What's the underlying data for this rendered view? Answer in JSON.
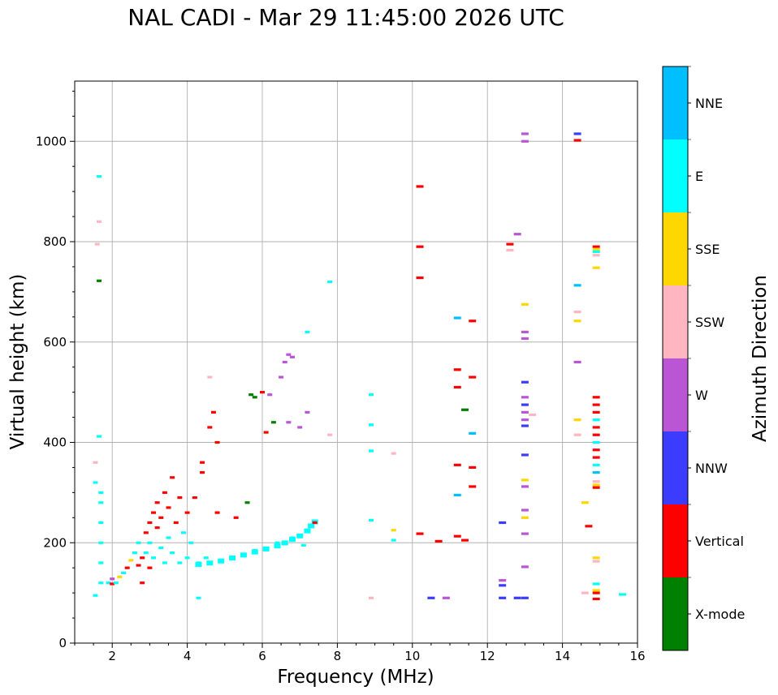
{
  "chart_data": {
    "type": "scatter",
    "title": "NAL CADI - Mar 29 11:45:00 2026 UTC",
    "xlabel": "Frequency (MHz)",
    "ylabel": "Virtual height (km)",
    "xlim": [
      1,
      16
    ],
    "ylim": [
      0,
      1120
    ],
    "xticks": [
      2,
      4,
      6,
      8,
      10,
      12,
      14,
      16
    ],
    "yticks": [
      0,
      200,
      400,
      600,
      800,
      1000
    ],
    "grid": true,
    "colorbar": {
      "label": "Azimuth Direction",
      "categories": [
        {
          "name": "NNE",
          "color": "#00bfff"
        },
        {
          "name": "E",
          "color": "#00ffff"
        },
        {
          "name": "SSE",
          "color": "#ffd700"
        },
        {
          "name": "SSW",
          "color": "#ffb6c1"
        },
        {
          "name": "W",
          "color": "#ba55d3"
        },
        {
          "name": "NNW",
          "color": "#3c3cff"
        },
        {
          "name": "Vertical",
          "color": "#ff0000"
        },
        {
          "name": "X-mode",
          "color": "#008000"
        }
      ]
    },
    "points": [
      {
        "x": 1.55,
        "y": 95,
        "dir": "E"
      },
      {
        "x": 1.55,
        "y": 320,
        "dir": "E"
      },
      {
        "x": 1.55,
        "y": 360,
        "dir": "SSW"
      },
      {
        "x": 1.6,
        "y": 795,
        "dir": "SSW"
      },
      {
        "x": 1.65,
        "y": 930,
        "dir": "E"
      },
      {
        "x": 1.65,
        "y": 722,
        "dir": "X-mode"
      },
      {
        "x": 1.65,
        "y": 412,
        "dir": "E"
      },
      {
        "x": 1.65,
        "y": 840,
        "dir": "SSW"
      },
      {
        "x": 1.7,
        "y": 120,
        "dir": "E"
      },
      {
        "x": 1.7,
        "y": 160,
        "dir": "E"
      },
      {
        "x": 1.7,
        "y": 200,
        "dir": "E"
      },
      {
        "x": 1.7,
        "y": 240,
        "dir": "E"
      },
      {
        "x": 1.7,
        "y": 280,
        "dir": "E"
      },
      {
        "x": 1.7,
        "y": 300,
        "dir": "E"
      },
      {
        "x": 1.9,
        "y": 120,
        "dir": "E"
      },
      {
        "x": 2.0,
        "y": 118,
        "dir": "Vertical"
      },
      {
        "x": 2.0,
        "y": 128,
        "dir": "W"
      },
      {
        "x": 2.1,
        "y": 120,
        "dir": "E"
      },
      {
        "x": 2.2,
        "y": 132,
        "dir": "SSE"
      },
      {
        "x": 2.3,
        "y": 140,
        "dir": "E"
      },
      {
        "x": 2.4,
        "y": 150,
        "dir": "Vertical"
      },
      {
        "x": 2.5,
        "y": 165,
        "dir": "SSE"
      },
      {
        "x": 2.6,
        "y": 180,
        "dir": "E"
      },
      {
        "x": 2.7,
        "y": 155,
        "dir": "Vertical"
      },
      {
        "x": 2.7,
        "y": 200,
        "dir": "E"
      },
      {
        "x": 2.8,
        "y": 170,
        "dir": "Vertical"
      },
      {
        "x": 2.8,
        "y": 120,
        "dir": "Vertical"
      },
      {
        "x": 2.9,
        "y": 180,
        "dir": "E"
      },
      {
        "x": 2.9,
        "y": 220,
        "dir": "Vertical"
      },
      {
        "x": 3.0,
        "y": 150,
        "dir": "Vertical"
      },
      {
        "x": 3.0,
        "y": 240,
        "dir": "Vertical"
      },
      {
        "x": 3.0,
        "y": 200,
        "dir": "E"
      },
      {
        "x": 3.1,
        "y": 260,
        "dir": "Vertical"
      },
      {
        "x": 3.1,
        "y": 170,
        "dir": "E"
      },
      {
        "x": 3.2,
        "y": 230,
        "dir": "Vertical"
      },
      {
        "x": 3.2,
        "y": 280,
        "dir": "Vertical"
      },
      {
        "x": 3.3,
        "y": 190,
        "dir": "E"
      },
      {
        "x": 3.3,
        "y": 250,
        "dir": "Vertical"
      },
      {
        "x": 3.4,
        "y": 300,
        "dir": "Vertical"
      },
      {
        "x": 3.4,
        "y": 160,
        "dir": "E"
      },
      {
        "x": 3.5,
        "y": 210,
        "dir": "E"
      },
      {
        "x": 3.5,
        "y": 270,
        "dir": "Vertical"
      },
      {
        "x": 3.6,
        "y": 330,
        "dir": "Vertical"
      },
      {
        "x": 3.6,
        "y": 180,
        "dir": "E"
      },
      {
        "x": 3.7,
        "y": 240,
        "dir": "Vertical"
      },
      {
        "x": 3.8,
        "y": 160,
        "dir": "E"
      },
      {
        "x": 3.8,
        "y": 290,
        "dir": "Vertical"
      },
      {
        "x": 3.9,
        "y": 220,
        "dir": "E"
      },
      {
        "x": 4.0,
        "y": 260,
        "dir": "Vertical"
      },
      {
        "x": 4.0,
        "y": 170,
        "dir": "E"
      },
      {
        "x": 4.1,
        "y": 200,
        "dir": "E"
      },
      {
        "x": 4.2,
        "y": 290,
        "dir": "Vertical"
      },
      {
        "x": 4.3,
        "y": 160,
        "dir": "E"
      },
      {
        "x": 4.3,
        "y": 90,
        "dir": "E"
      },
      {
        "x": 4.4,
        "y": 360,
        "dir": "Vertical"
      },
      {
        "x": 4.4,
        "y": 340,
        "dir": "Vertical"
      },
      {
        "x": 4.5,
        "y": 170,
        "dir": "E"
      },
      {
        "x": 4.6,
        "y": 530,
        "dir": "SSW"
      },
      {
        "x": 4.6,
        "y": 430,
        "dir": "Vertical"
      },
      {
        "x": 4.7,
        "y": 460,
        "dir": "Vertical"
      },
      {
        "x": 4.8,
        "y": 400,
        "dir": "Vertical"
      },
      {
        "x": 4.8,
        "y": 260,
        "dir": "Vertical"
      },
      {
        "x": 4.9,
        "y": 165,
        "dir": "E"
      },
      {
        "x": 5.2,
        "y": 170,
        "dir": "E"
      },
      {
        "x": 5.3,
        "y": 250,
        "dir": "Vertical"
      },
      {
        "x": 5.5,
        "y": 175,
        "dir": "E"
      },
      {
        "x": 5.6,
        "y": 280,
        "dir": "X-mode"
      },
      {
        "x": 5.7,
        "y": 495,
        "dir": "X-mode"
      },
      {
        "x": 5.8,
        "y": 490,
        "dir": "X-mode"
      },
      {
        "x": 5.8,
        "y": 185,
        "dir": "E"
      },
      {
        "x": 6.0,
        "y": 500,
        "dir": "Vertical"
      },
      {
        "x": 6.1,
        "y": 420,
        "dir": "Vertical"
      },
      {
        "x": 6.1,
        "y": 190,
        "dir": "E"
      },
      {
        "x": 6.2,
        "y": 495,
        "dir": "W"
      },
      {
        "x": 6.3,
        "y": 440,
        "dir": "X-mode"
      },
      {
        "x": 6.4,
        "y": 200,
        "dir": "E"
      },
      {
        "x": 6.5,
        "y": 530,
        "dir": "W"
      },
      {
        "x": 6.6,
        "y": 560,
        "dir": "W"
      },
      {
        "x": 6.7,
        "y": 575,
        "dir": "W"
      },
      {
        "x": 6.7,
        "y": 440,
        "dir": "W"
      },
      {
        "x": 6.8,
        "y": 570,
        "dir": "W"
      },
      {
        "x": 6.8,
        "y": 210,
        "dir": "E"
      },
      {
        "x": 7.0,
        "y": 430,
        "dir": "W"
      },
      {
        "x": 7.1,
        "y": 195,
        "dir": "E"
      },
      {
        "x": 7.2,
        "y": 620,
        "dir": "E"
      },
      {
        "x": 7.2,
        "y": 460,
        "dir": "W"
      },
      {
        "x": 7.4,
        "y": 240,
        "dir": "Vertical"
      },
      {
        "x": 7.8,
        "y": 720,
        "dir": "E"
      },
      {
        "x": 7.8,
        "y": 415,
        "dir": "SSW"
      },
      {
        "x": 8.9,
        "y": 495,
        "dir": "E"
      },
      {
        "x": 8.9,
        "y": 435,
        "dir": "E"
      },
      {
        "x": 8.9,
        "y": 383,
        "dir": "E"
      },
      {
        "x": 8.9,
        "y": 245,
        "dir": "E"
      },
      {
        "x": 8.9,
        "y": 90,
        "dir": "SSW"
      },
      {
        "x": 9.5,
        "y": 378,
        "dir": "SSW"
      },
      {
        "x": 9.5,
        "y": 225,
        "dir": "SSE"
      },
      {
        "x": 9.5,
        "y": 205,
        "dir": "E"
      },
      {
        "x": 10.2,
        "y": 910,
        "dir": "Vertical"
      },
      {
        "x": 10.2,
        "y": 790,
        "dir": "Vertical"
      },
      {
        "x": 10.2,
        "y": 728,
        "dir": "Vertical"
      },
      {
        "x": 10.2,
        "y": 218,
        "dir": "Vertical"
      },
      {
        "x": 10.5,
        "y": 90,
        "dir": "NNW"
      },
      {
        "x": 10.7,
        "y": 203,
        "dir": "Vertical"
      },
      {
        "x": 10.9,
        "y": 90,
        "dir": "W"
      },
      {
        "x": 11.2,
        "y": 648,
        "dir": "NNE"
      },
      {
        "x": 11.2,
        "y": 545,
        "dir": "Vertical"
      },
      {
        "x": 11.2,
        "y": 510,
        "dir": "Vertical"
      },
      {
        "x": 11.2,
        "y": 355,
        "dir": "Vertical"
      },
      {
        "x": 11.2,
        "y": 295,
        "dir": "NNE"
      },
      {
        "x": 11.2,
        "y": 213,
        "dir": "Vertical"
      },
      {
        "x": 11.4,
        "y": 205,
        "dir": "Vertical"
      },
      {
        "x": 11.4,
        "y": 465,
        "dir": "X-mode"
      },
      {
        "x": 11.6,
        "y": 642,
        "dir": "Vertical"
      },
      {
        "x": 11.6,
        "y": 530,
        "dir": "Vertical"
      },
      {
        "x": 11.6,
        "y": 418,
        "dir": "NNE"
      },
      {
        "x": 11.6,
        "y": 350,
        "dir": "Vertical"
      },
      {
        "x": 11.6,
        "y": 312,
        "dir": "Vertical"
      },
      {
        "x": 12.4,
        "y": 240,
        "dir": "NNW"
      },
      {
        "x": 12.4,
        "y": 125,
        "dir": "W"
      },
      {
        "x": 12.4,
        "y": 115,
        "dir": "NNW"
      },
      {
        "x": 12.4,
        "y": 90,
        "dir": "NNW"
      },
      {
        "x": 12.6,
        "y": 795,
        "dir": "Vertical"
      },
      {
        "x": 12.6,
        "y": 783,
        "dir": "SSW"
      },
      {
        "x": 12.8,
        "y": 815,
        "dir": "W"
      },
      {
        "x": 12.8,
        "y": 90,
        "dir": "NNW"
      },
      {
        "x": 13.0,
        "y": 1015,
        "dir": "W"
      },
      {
        "x": 13.0,
        "y": 1000,
        "dir": "W"
      },
      {
        "x": 13.0,
        "y": 675,
        "dir": "SSE"
      },
      {
        "x": 13.0,
        "y": 620,
        "dir": "W"
      },
      {
        "x": 13.0,
        "y": 607,
        "dir": "W"
      },
      {
        "x": 13.0,
        "y": 520,
        "dir": "NNW"
      },
      {
        "x": 13.0,
        "y": 490,
        "dir": "W"
      },
      {
        "x": 13.0,
        "y": 475,
        "dir": "NNW"
      },
      {
        "x": 13.0,
        "y": 460,
        "dir": "W"
      },
      {
        "x": 13.0,
        "y": 445,
        "dir": "W"
      },
      {
        "x": 13.0,
        "y": 433,
        "dir": "NNW"
      },
      {
        "x": 13.0,
        "y": 375,
        "dir": "NNW"
      },
      {
        "x": 13.0,
        "y": 325,
        "dir": "SSE"
      },
      {
        "x": 13.0,
        "y": 312,
        "dir": "W"
      },
      {
        "x": 13.0,
        "y": 265,
        "dir": "W"
      },
      {
        "x": 13.0,
        "y": 250,
        "dir": "SSE"
      },
      {
        "x": 13.0,
        "y": 218,
        "dir": "W"
      },
      {
        "x": 13.0,
        "y": 152,
        "dir": "W"
      },
      {
        "x": 13.0,
        "y": 90,
        "dir": "NNW"
      },
      {
        "x": 13.2,
        "y": 455,
        "dir": "SSW"
      },
      {
        "x": 14.4,
        "y": 1015,
        "dir": "NNW"
      },
      {
        "x": 14.4,
        "y": 1002,
        "dir": "Vertical"
      },
      {
        "x": 14.4,
        "y": 713,
        "dir": "NNE"
      },
      {
        "x": 14.4,
        "y": 660,
        "dir": "SSW"
      },
      {
        "x": 14.4,
        "y": 642,
        "dir": "SSE"
      },
      {
        "x": 14.4,
        "y": 560,
        "dir": "W"
      },
      {
        "x": 14.4,
        "y": 445,
        "dir": "SSE"
      },
      {
        "x": 14.4,
        "y": 415,
        "dir": "SSW"
      },
      {
        "x": 14.6,
        "y": 280,
        "dir": "SSE"
      },
      {
        "x": 14.7,
        "y": 233,
        "dir": "Vertical"
      },
      {
        "x": 14.6,
        "y": 100,
        "dir": "SSW"
      },
      {
        "x": 14.9,
        "y": 790,
        "dir": "Vertical"
      },
      {
        "x": 14.9,
        "y": 785,
        "dir": "SSE"
      },
      {
        "x": 14.9,
        "y": 780,
        "dir": "E"
      },
      {
        "x": 14.9,
        "y": 773,
        "dir": "SSW"
      },
      {
        "x": 14.9,
        "y": 748,
        "dir": "SSE"
      },
      {
        "x": 14.9,
        "y": 490,
        "dir": "Vertical"
      },
      {
        "x": 14.9,
        "y": 475,
        "dir": "Vertical"
      },
      {
        "x": 14.9,
        "y": 460,
        "dir": "Vertical"
      },
      {
        "x": 14.9,
        "y": 445,
        "dir": "E"
      },
      {
        "x": 14.9,
        "y": 430,
        "dir": "Vertical"
      },
      {
        "x": 14.9,
        "y": 415,
        "dir": "Vertical"
      },
      {
        "x": 14.9,
        "y": 400,
        "dir": "E"
      },
      {
        "x": 14.9,
        "y": 385,
        "dir": "Vertical"
      },
      {
        "x": 14.9,
        "y": 370,
        "dir": "Vertical"
      },
      {
        "x": 14.9,
        "y": 355,
        "dir": "E"
      },
      {
        "x": 14.9,
        "y": 340,
        "dir": "NNE"
      },
      {
        "x": 14.9,
        "y": 322,
        "dir": "SSW"
      },
      {
        "x": 14.9,
        "y": 315,
        "dir": "SSE"
      },
      {
        "x": 14.9,
        "y": 310,
        "dir": "Vertical"
      },
      {
        "x": 14.9,
        "y": 170,
        "dir": "SSE"
      },
      {
        "x": 14.9,
        "y": 163,
        "dir": "SSW"
      },
      {
        "x": 14.9,
        "y": 118,
        "dir": "E"
      },
      {
        "x": 14.9,
        "y": 105,
        "dir": "SSE"
      },
      {
        "x": 14.9,
        "y": 100,
        "dir": "Vertical"
      },
      {
        "x": 14.9,
        "y": 88,
        "dir": "Vertical"
      },
      {
        "x": 15.6,
        "y": 97,
        "dir": "E"
      }
    ],
    "f_trace": [
      {
        "x": 4.3,
        "y": 155
      },
      {
        "x": 4.6,
        "y": 158
      },
      {
        "x": 4.9,
        "y": 162
      },
      {
        "x": 5.2,
        "y": 168
      },
      {
        "x": 5.5,
        "y": 174
      },
      {
        "x": 5.8,
        "y": 180
      },
      {
        "x": 6.1,
        "y": 186
      },
      {
        "x": 6.4,
        "y": 192
      },
      {
        "x": 6.6,
        "y": 198
      },
      {
        "x": 6.8,
        "y": 205
      },
      {
        "x": 7.0,
        "y": 212
      },
      {
        "x": 7.2,
        "y": 222
      },
      {
        "x": 7.3,
        "y": 232
      },
      {
        "x": 7.4,
        "y": 240
      }
    ]
  }
}
